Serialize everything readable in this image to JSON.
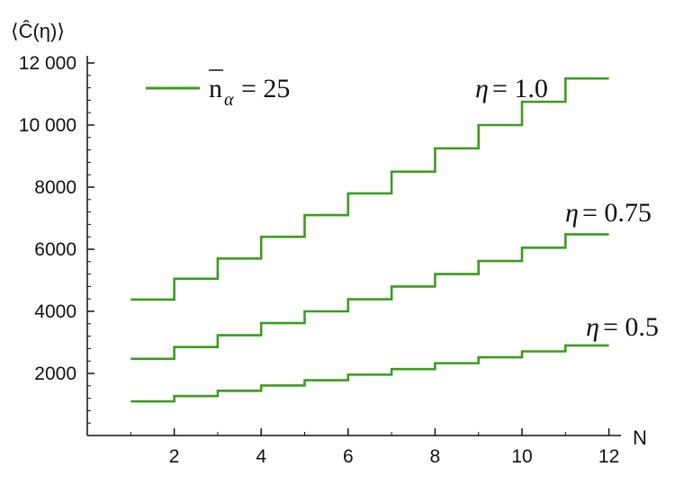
{
  "chart_data": {
    "type": "line",
    "step": true,
    "xlabel": "N",
    "ylabel": "⟨Ĉ(η)⟩",
    "xlim": [
      0,
      12.4
    ],
    "ylim": [
      0,
      12000
    ],
    "xticks": [
      2,
      4,
      6,
      8,
      10,
      12
    ],
    "xminor_ticks": [
      1,
      3,
      5,
      7,
      9,
      11
    ],
    "yticks": [
      2000,
      4000,
      6000,
      8000,
      10000,
      12000
    ],
    "ytick_labels": [
      "2000",
      "4000",
      "6000",
      "8000",
      "10 000",
      "12 000"
    ],
    "legend": {
      "position": "top-left",
      "label_main": "n",
      "label_sub": "α",
      "label_value": "= 25"
    },
    "color": "#3c9b1e",
    "x": [
      1,
      2,
      3,
      4,
      5,
      6,
      7,
      8,
      9,
      10,
      11,
      12
    ],
    "series": [
      {
        "name": "η = 1.0",
        "label_symbol": "η",
        "label_value": "= 1.0",
        "values": [
          4380,
          5050,
          5700,
          6400,
          7100,
          7800,
          8500,
          9250,
          10000,
          10750,
          11500,
          11500
        ]
      },
      {
        "name": "η = 0.75",
        "label_symbol": "η",
        "label_value": "= 0.75",
        "values": [
          2470,
          2850,
          3230,
          3620,
          4000,
          4390,
          4800,
          5200,
          5620,
          6050,
          6480,
          6480
        ]
      },
      {
        "name": "η = 0.5",
        "label_symbol": "η",
        "label_value": "= 0.5",
        "values": [
          1100,
          1270,
          1440,
          1610,
          1780,
          1960,
          2140,
          2330,
          2520,
          2710,
          2900,
          2900
        ]
      }
    ]
  }
}
